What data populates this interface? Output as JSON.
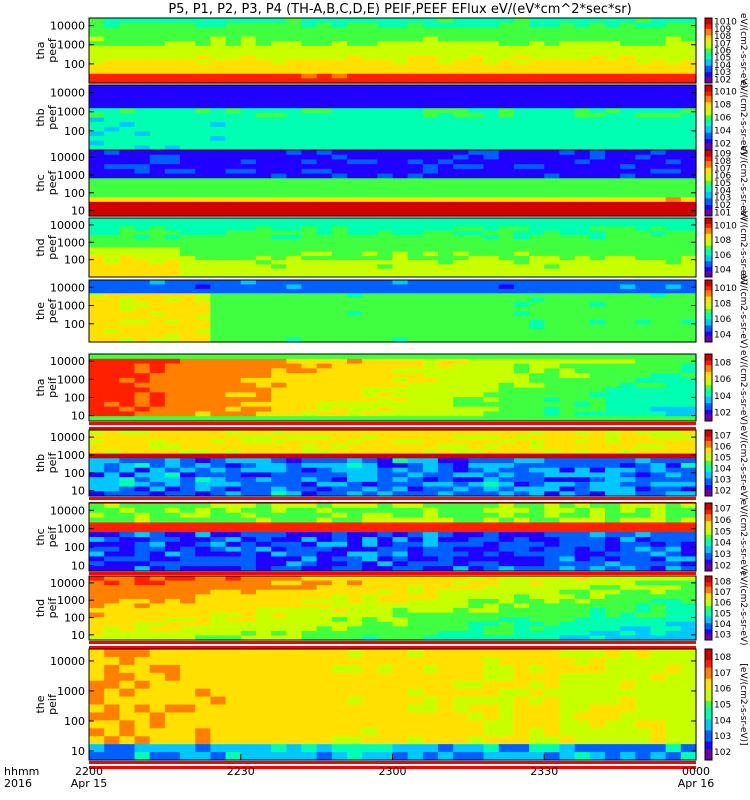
{
  "chart_data": {
    "type": "heatmap",
    "title": "P5, P1, P2, P3, P4 (TH-A,B,C,D,E) PEIF,PEEF EFlux eV/(eV*cm^2*sec*sr)",
    "x_axis": {
      "label_line1": "hhmm",
      "label_line2": "2016",
      "ticks": [
        {
          "value": "2200",
          "sub": "Apr 15"
        },
        {
          "value": "2230",
          "sub": ""
        },
        {
          "value": "2300",
          "sub": ""
        },
        {
          "value": "2330",
          "sub": ""
        },
        {
          "value": "0000",
          "sub": "Apr 16"
        }
      ],
      "range": [
        "2016-04-15 22:00",
        "2016-04-16 00:00"
      ]
    },
    "panels": [
      {
        "probe": "tha",
        "product": "peef",
        "yticks": [
          "10000",
          "1000",
          "100"
        ],
        "ylim": [
          10,
          25000
        ],
        "log": true,
        "colorbar_ticks": [
          "10^10",
          "10^9",
          "10^8",
          "10^7",
          "10^6",
          "10^5",
          "10^4",
          "10^3",
          "10^2"
        ],
        "colorbar_label": "eV/(cm2-s-sr-eV)"
      },
      {
        "probe": "thb",
        "product": "peef",
        "yticks": [
          "10000",
          "1000",
          "100"
        ],
        "ylim": [
          10,
          25000
        ],
        "log": true,
        "colorbar_ticks": [
          "10^10",
          "10^8",
          "10^6",
          "10^4",
          "10^2"
        ],
        "colorbar_label": "eV/(cm2-s-sr-eV)"
      },
      {
        "probe": "thc",
        "product": "peef",
        "yticks": [
          "10000",
          "1000",
          "100",
          "10"
        ],
        "ylim": [
          5,
          25000
        ],
        "log": true,
        "colorbar_ticks": [
          "10^9",
          "10^8",
          "10^7",
          "10^6",
          "10^5",
          "10^4",
          "10^3",
          "10^2",
          "10^1"
        ],
        "colorbar_label": "eV/(cm2-s-sr-eV)"
      },
      {
        "probe": "thd",
        "product": "peef",
        "yticks": [
          "10000",
          "1000",
          "100"
        ],
        "ylim": [
          10,
          25000
        ],
        "log": true,
        "colorbar_ticks": [
          "10^10",
          "10^8",
          "10^6",
          "10^4"
        ],
        "colorbar_label": "eV/(cm2-s-sr-eV)"
      },
      {
        "probe": "the",
        "product": "peef",
        "yticks": [
          "10000",
          "1000",
          "100"
        ],
        "ylim": [
          10,
          25000
        ],
        "log": true,
        "colorbar_ticks": [
          "10^10",
          "10^8",
          "10^6",
          "10^4"
        ],
        "colorbar_label": "eV/(cm2-s-sr-eV)"
      },
      {
        "probe": "tha",
        "product": "peif",
        "yticks": [
          "10000",
          "1000",
          "100",
          "10"
        ],
        "ylim": [
          5,
          25000
        ],
        "log": true,
        "colorbar_ticks": [
          "10^8",
          "10^6",
          "10^4",
          "10^2"
        ],
        "colorbar_label": "eV/(cm2-s-sr-eV)"
      },
      {
        "probe": "thb",
        "product": "peif",
        "yticks": [
          "10000",
          "1000",
          "100",
          "10"
        ],
        "ylim": [
          5,
          25000
        ],
        "log": true,
        "colorbar_ticks": [
          "10^7",
          "10^6",
          "10^5",
          "10^4",
          "10^3",
          "10^2"
        ],
        "colorbar_label": "eV/(cm2-s-sr-eV)"
      },
      {
        "probe": "thc",
        "product": "peif",
        "yticks": [
          "10000",
          "1000",
          "100",
          "10"
        ],
        "ylim": [
          5,
          25000
        ],
        "log": true,
        "colorbar_ticks": [
          "10^7",
          "10^6",
          "10^5",
          "10^4",
          "10^3",
          "10^2"
        ],
        "colorbar_label": "eV/(cm2-s-sr-eV)"
      },
      {
        "probe": "thd",
        "product": "peif",
        "yticks": [
          "10000",
          "1000",
          "100",
          "10"
        ],
        "ylim": [
          5,
          25000
        ],
        "log": true,
        "colorbar_ticks": [
          "10^8",
          "10^7",
          "10^6",
          "10^5",
          "10^4",
          "10^3"
        ],
        "colorbar_label": "eV/(cm2-s-sr-eV)"
      },
      {
        "probe": "the",
        "product": "peif",
        "yticks": [
          "10000",
          "1000",
          "100",
          "10"
        ],
        "ylim": [
          5,
          25000
        ],
        "log": true,
        "colorbar_ticks": [
          "10^8",
          "10^7",
          "10^6",
          "10^5",
          "10^4",
          "10^3",
          "10^2"
        ],
        "colorbar_label": "[eV/(cm2-s-sr-eV)]"
      }
    ],
    "colormap": [
      "#6a00a8",
      "#2000ff",
      "#0060ff",
      "#00c8ff",
      "#00ffb0",
      "#40ff40",
      "#c8ff00",
      "#ffe000",
      "#ff8000",
      "#ff2000",
      "#d00000"
    ]
  }
}
